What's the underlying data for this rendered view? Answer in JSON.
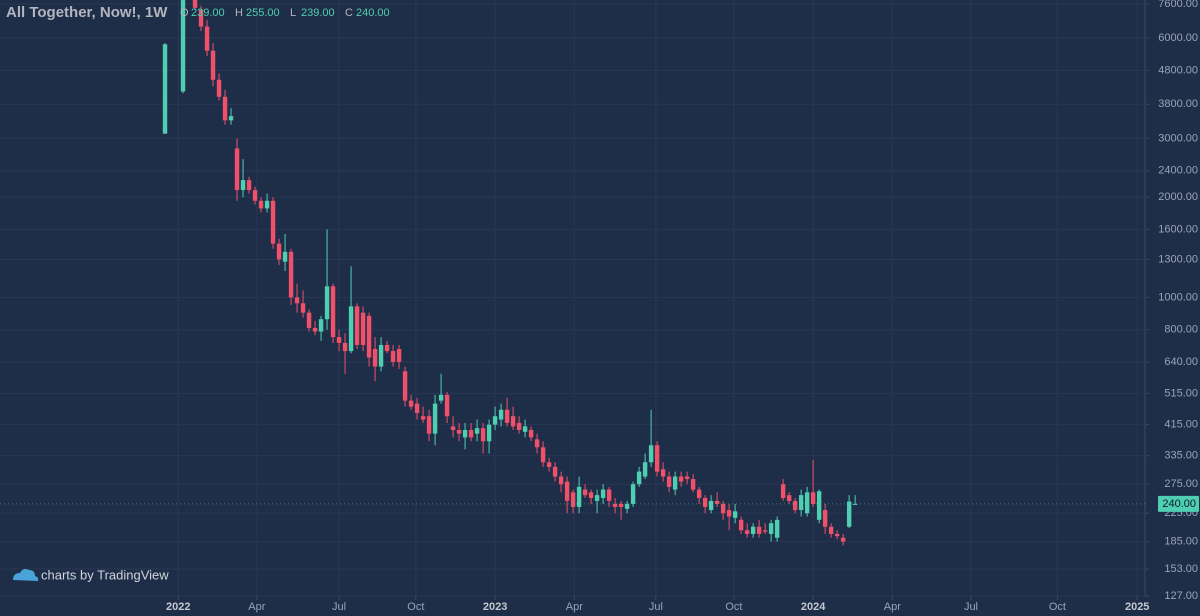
{
  "chart_data": {
    "type": "candlestick",
    "title": "All Together, Now!, 1W",
    "last_bar": {
      "labels": [
        "O",
        "H",
        "L",
        "C"
      ],
      "values": [
        239,
        255,
        239,
        240
      ],
      "value_labels": [
        "239.00",
        "255.00",
        "239.00",
        "240.00"
      ]
    },
    "last_price": {
      "value": 240,
      "label": "240.00"
    },
    "watermark": "charts by TradingView",
    "up_color": "#4fcfb2",
    "down_color": "#f0506a",
    "log_scale": true,
    "grid": true,
    "x": [
      -2,
      1,
      3,
      4,
      5,
      6,
      7,
      8,
      9,
      10,
      11,
      12,
      13,
      14,
      15,
      16,
      17,
      18,
      19,
      20,
      21,
      22,
      23,
      24,
      25,
      26,
      27,
      28,
      29,
      30,
      31,
      32,
      33,
      34,
      35,
      36,
      37,
      38,
      39,
      40,
      41,
      42,
      43,
      44,
      45,
      46,
      47,
      48,
      49,
      50,
      51,
      52,
      53,
      54,
      55,
      56,
      57,
      58,
      59,
      60,
      61,
      62,
      63,
      64,
      65,
      66,
      67,
      68,
      69,
      70,
      71,
      72,
      73,
      74,
      75,
      76,
      77,
      78,
      79,
      80,
      81,
      82,
      83,
      84,
      85,
      86,
      87,
      88,
      89,
      90,
      91,
      92,
      93,
      94,
      95,
      96,
      97,
      98,
      99,
      100,
      101,
      102,
      103,
      104,
      105,
      106,
      107,
      108,
      109,
      110,
      111,
      112,
      113
    ],
    "open": [
      3100,
      4150,
      7900,
      7300,
      6500,
      5500,
      4500,
      4000,
      3400,
      2800,
      2100,
      2250,
      2100,
      1950,
      1850,
      1950,
      1450,
      1280,
      1370,
      1000,
      960,
      900,
      810,
      790,
      860,
      1080,
      760,
      730,
      690,
      940,
      900,
      880,
      700,
      620,
      720,
      690,
      700,
      600,
      490,
      480,
      440,
      440,
      390,
      490,
      510,
      410,
      400,
      380,
      400,
      390,
      405,
      370,
      415,
      430,
      460,
      440,
      420,
      395,
      400,
      375,
      355,
      320,
      310,
      290,
      280,
      260,
      235,
      265,
      260,
      245,
      250,
      265,
      240,
      240,
      232,
      240,
      275,
      290,
      320,
      360,
      305,
      290,
      265,
      290,
      290,
      285,
      265,
      250,
      230,
      245,
      240,
      230,
      218,
      215,
      200,
      195,
      205,
      200,
      195,
      190,
      275,
      255,
      245,
      230,
      225,
      260,
      215,
      230,
      205,
      195,
      190,
      205,
      239
    ],
    "high": [
      5800,
      8500,
      8200,
      7500,
      6800,
      5800,
      4700,
      4200,
      3700,
      3000,
      2600,
      2300,
      2150,
      2000,
      2050,
      2000,
      1500,
      1550,
      1400,
      1100,
      1050,
      920,
      850,
      880,
      1600,
      1100,
      800,
      780,
      1240,
      960,
      940,
      900,
      760,
      760,
      740,
      720,
      720,
      620,
      510,
      500,
      470,
      460,
      510,
      590,
      520,
      440,
      420,
      420,
      420,
      430,
      420,
      430,
      470,
      480,
      500,
      470,
      440,
      430,
      410,
      390,
      370,
      330,
      320,
      300,
      290,
      265,
      290,
      275,
      265,
      265,
      275,
      270,
      250,
      245,
      245,
      280,
      310,
      340,
      460,
      370,
      320,
      300,
      300,
      300,
      300,
      295,
      270,
      255,
      255,
      260,
      245,
      240,
      240,
      220,
      210,
      210,
      215,
      210,
      215,
      220,
      285,
      260,
      250,
      265,
      270,
      325,
      265,
      240,
      210,
      200,
      195,
      255,
      255
    ],
    "low": [
      3100,
      4100,
      7300,
      6300,
      5300,
      4300,
      3900,
      3300,
      3300,
      1950,
      2000,
      2050,
      1900,
      1800,
      1800,
      1400,
      1250,
      1200,
      950,
      900,
      870,
      790,
      770,
      740,
      800,
      730,
      690,
      590,
      680,
      700,
      690,
      620,
      560,
      600,
      680,
      620,
      610,
      470,
      460,
      430,
      420,
      370,
      360,
      480,
      420,
      380,
      370,
      350,
      370,
      370,
      340,
      340,
      400,
      410,
      410,
      400,
      390,
      380,
      370,
      340,
      310,
      300,
      280,
      260,
      225,
      225,
      225,
      250,
      240,
      225,
      240,
      235,
      225,
      215,
      225,
      235,
      270,
      285,
      310,
      290,
      280,
      260,
      255,
      270,
      275,
      260,
      240,
      225,
      225,
      235,
      215,
      200,
      210,
      195,
      190,
      190,
      190,
      195,
      185,
      185,
      245,
      240,
      225,
      220,
      220,
      235,
      210,
      195,
      190,
      188,
      180,
      203,
      239
    ],
    "close": [
      5750,
      7900,
      7400,
      6500,
      5500,
      4500,
      4000,
      3400,
      3500,
      2100,
      2250,
      2100,
      1950,
      1850,
      1950,
      1450,
      1300,
      1370,
      1000,
      960,
      900,
      810,
      790,
      860,
      1080,
      760,
      730,
      690,
      940,
      720,
      720,
      660,
      620,
      720,
      690,
      640,
      640,
      490,
      470,
      450,
      430,
      390,
      480,
      510,
      440,
      400,
      390,
      400,
      380,
      405,
      370,
      415,
      440,
      460,
      420,
      410,
      400,
      410,
      380,
      355,
      320,
      310,
      290,
      275,
      245,
      235,
      270,
      255,
      250,
      255,
      265,
      245,
      235,
      235,
      240,
      275,
      300,
      320,
      360,
      300,
      290,
      270,
      290,
      280,
      285,
      265,
      250,
      235,
      245,
      240,
      225,
      220,
      228,
      200,
      195,
      205,
      195,
      198,
      210,
      215,
      250,
      245,
      230,
      255,
      260,
      240,
      262,
      205,
      195,
      192,
      185,
      244,
      240
    ],
    "xlim": [
      -29.5,
      161.3
    ],
    "xticks": [
      {
        "value": 0.2,
        "label": "2022"
      },
      {
        "value": 13.3,
        "label": "Apr"
      },
      {
        "value": 27,
        "label": "Jul"
      },
      {
        "value": 39.8,
        "label": "Oct"
      },
      {
        "value": 53,
        "label": "2023"
      },
      {
        "value": 66.2,
        "label": "Apr"
      },
      {
        "value": 79.8,
        "label": "Jul"
      },
      {
        "value": 92.8,
        "label": "Oct"
      },
      {
        "value": 106,
        "label": "2024"
      },
      {
        "value": 119.2,
        "label": "Apr"
      },
      {
        "value": 132.3,
        "label": "Jul"
      },
      {
        "value": 146.7,
        "label": "Oct"
      },
      {
        "value": 160,
        "label": "2025"
      }
    ],
    "ylim": [
      127,
      7810
    ],
    "yticks": [
      {
        "value": 7600,
        "label": "7600.00"
      },
      {
        "value": 6000,
        "label": "6000.00"
      },
      {
        "value": 4800,
        "label": "4800.00"
      },
      {
        "value": 3800,
        "label": "3800.00"
      },
      {
        "value": 3000,
        "label": "3000.00"
      },
      {
        "value": 2400,
        "label": "2400.00"
      },
      {
        "value": 2000,
        "label": "2000.00"
      },
      {
        "value": 1600,
        "label": "1600.00"
      },
      {
        "value": 1300,
        "label": "1300.00"
      },
      {
        "value": 1000,
        "label": "1000.00"
      },
      {
        "value": 800,
        "label": "800.00"
      },
      {
        "value": 640,
        "label": "640.00"
      },
      {
        "value": 515,
        "label": "515.00"
      },
      {
        "value": 415,
        "label": "415.00"
      },
      {
        "value": 335,
        "label": "335.00"
      },
      {
        "value": 275,
        "label": "275.00"
      },
      {
        "value": 225,
        "label": "225.00"
      },
      {
        "value": 185,
        "label": "185.00"
      },
      {
        "value": 153,
        "label": "153.00"
      },
      {
        "value": 127,
        "label": "127.00"
      }
    ]
  }
}
